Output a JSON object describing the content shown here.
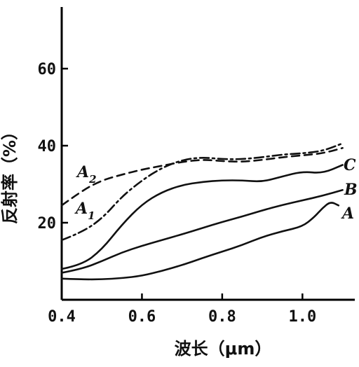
{
  "chart_data": {
    "type": "line",
    "xlabel": "波长（μm）",
    "ylabel": "反射率（%）",
    "xlim": [
      0.4,
      1.12
    ],
    "ylim": [
      0,
      76
    ],
    "x_ticks": [
      "0.4",
      "0.6",
      "0.8",
      "1.0"
    ],
    "y_ticks": [
      "20",
      "40",
      "60"
    ],
    "grid": false,
    "series": [
      {
        "name": "A",
        "style": "solid",
        "x": [
          0.4,
          0.45,
          0.5,
          0.55,
          0.6,
          0.65,
          0.7,
          0.75,
          0.8,
          0.85,
          0.9,
          0.95,
          1.0,
          1.03,
          1.05,
          1.07,
          1.09
        ],
        "y": [
          5.5,
          5.3,
          5.3,
          5.6,
          6.2,
          7.5,
          9.0,
          10.8,
          12.5,
          14.2,
          16.3,
          17.8,
          19.0,
          21.5,
          23.8,
          25.5,
          24.5
        ]
      },
      {
        "name": "B",
        "style": "solid",
        "x": [
          0.4,
          0.45,
          0.5,
          0.55,
          0.6,
          0.65,
          0.7,
          0.75,
          0.8,
          0.85,
          0.9,
          0.95,
          1.0,
          1.05,
          1.1
        ],
        "y": [
          7.0,
          8.0,
          10.0,
          12.3,
          14.0,
          15.5,
          17.0,
          18.6,
          20.2,
          21.6,
          23.2,
          24.6,
          25.8,
          27.0,
          28.5
        ]
      },
      {
        "name": "C",
        "style": "solid",
        "x": [
          0.4,
          0.45,
          0.5,
          0.55,
          0.6,
          0.65,
          0.7,
          0.75,
          0.8,
          0.85,
          0.9,
          0.95,
          1.0,
          1.05,
          1.1
        ],
        "y": [
          8.0,
          9.0,
          13.0,
          19.5,
          24.8,
          28.0,
          29.8,
          30.6,
          31.0,
          31.0,
          30.6,
          32.0,
          33.3,
          32.8,
          35.0
        ]
      },
      {
        "name": "A1",
        "style": "dash-dot",
        "x": [
          0.4,
          0.45,
          0.5,
          0.55,
          0.6,
          0.65,
          0.7,
          0.75,
          0.8,
          0.85,
          0.9,
          0.95,
          1.0,
          1.05,
          1.1
        ],
        "y": [
          15.5,
          17.5,
          21.0,
          26.8,
          31.0,
          34.3,
          36.3,
          37.0,
          36.5,
          36.5,
          37.0,
          37.7,
          38.0,
          38.6,
          40.6
        ]
      },
      {
        "name": "A2",
        "style": "dashed",
        "x": [
          0.4,
          0.45,
          0.5,
          0.55,
          0.6,
          0.65,
          0.7,
          0.75,
          0.8,
          0.85,
          0.9,
          0.95,
          1.0,
          1.05,
          1.1
        ],
        "y": [
          24.5,
          28.3,
          31.0,
          32.5,
          33.8,
          34.8,
          35.8,
          36.4,
          36.0,
          35.8,
          36.3,
          37.0,
          37.5,
          38.0,
          39.4
        ]
      }
    ],
    "series_labels": {
      "A": {
        "main": "A",
        "sub": ""
      },
      "B": {
        "main": "B",
        "sub": ""
      },
      "C": {
        "main": "C",
        "sub": ""
      },
      "A1": {
        "main": "A",
        "sub": "1"
      },
      "A2": {
        "main": "A",
        "sub": "2"
      }
    }
  }
}
